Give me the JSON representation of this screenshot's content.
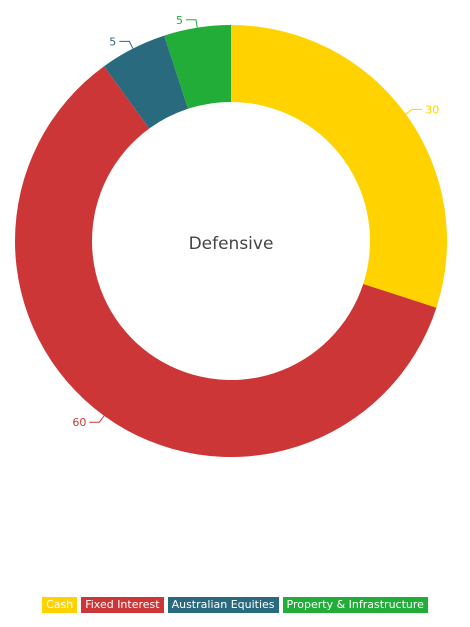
{
  "chart_data": {
    "type": "pie",
    "center_label": "Defensive",
    "categories": [
      "Cash",
      "Fixed Interest",
      "Australian Equities",
      "Property & Infrastructure"
    ],
    "values": [
      30,
      60,
      5,
      5
    ],
    "colors": [
      "#ffd200",
      "#cc3636",
      "#2a6a7f",
      "#22ad39"
    ],
    "value_labels": [
      "30",
      "60",
      "5",
      "5"
    ],
    "legend": {
      "placement": "bottom",
      "items": [
        "Cash",
        "Fixed Interest",
        "Australian Equities",
        "Property & Infrastructure"
      ]
    }
  }
}
